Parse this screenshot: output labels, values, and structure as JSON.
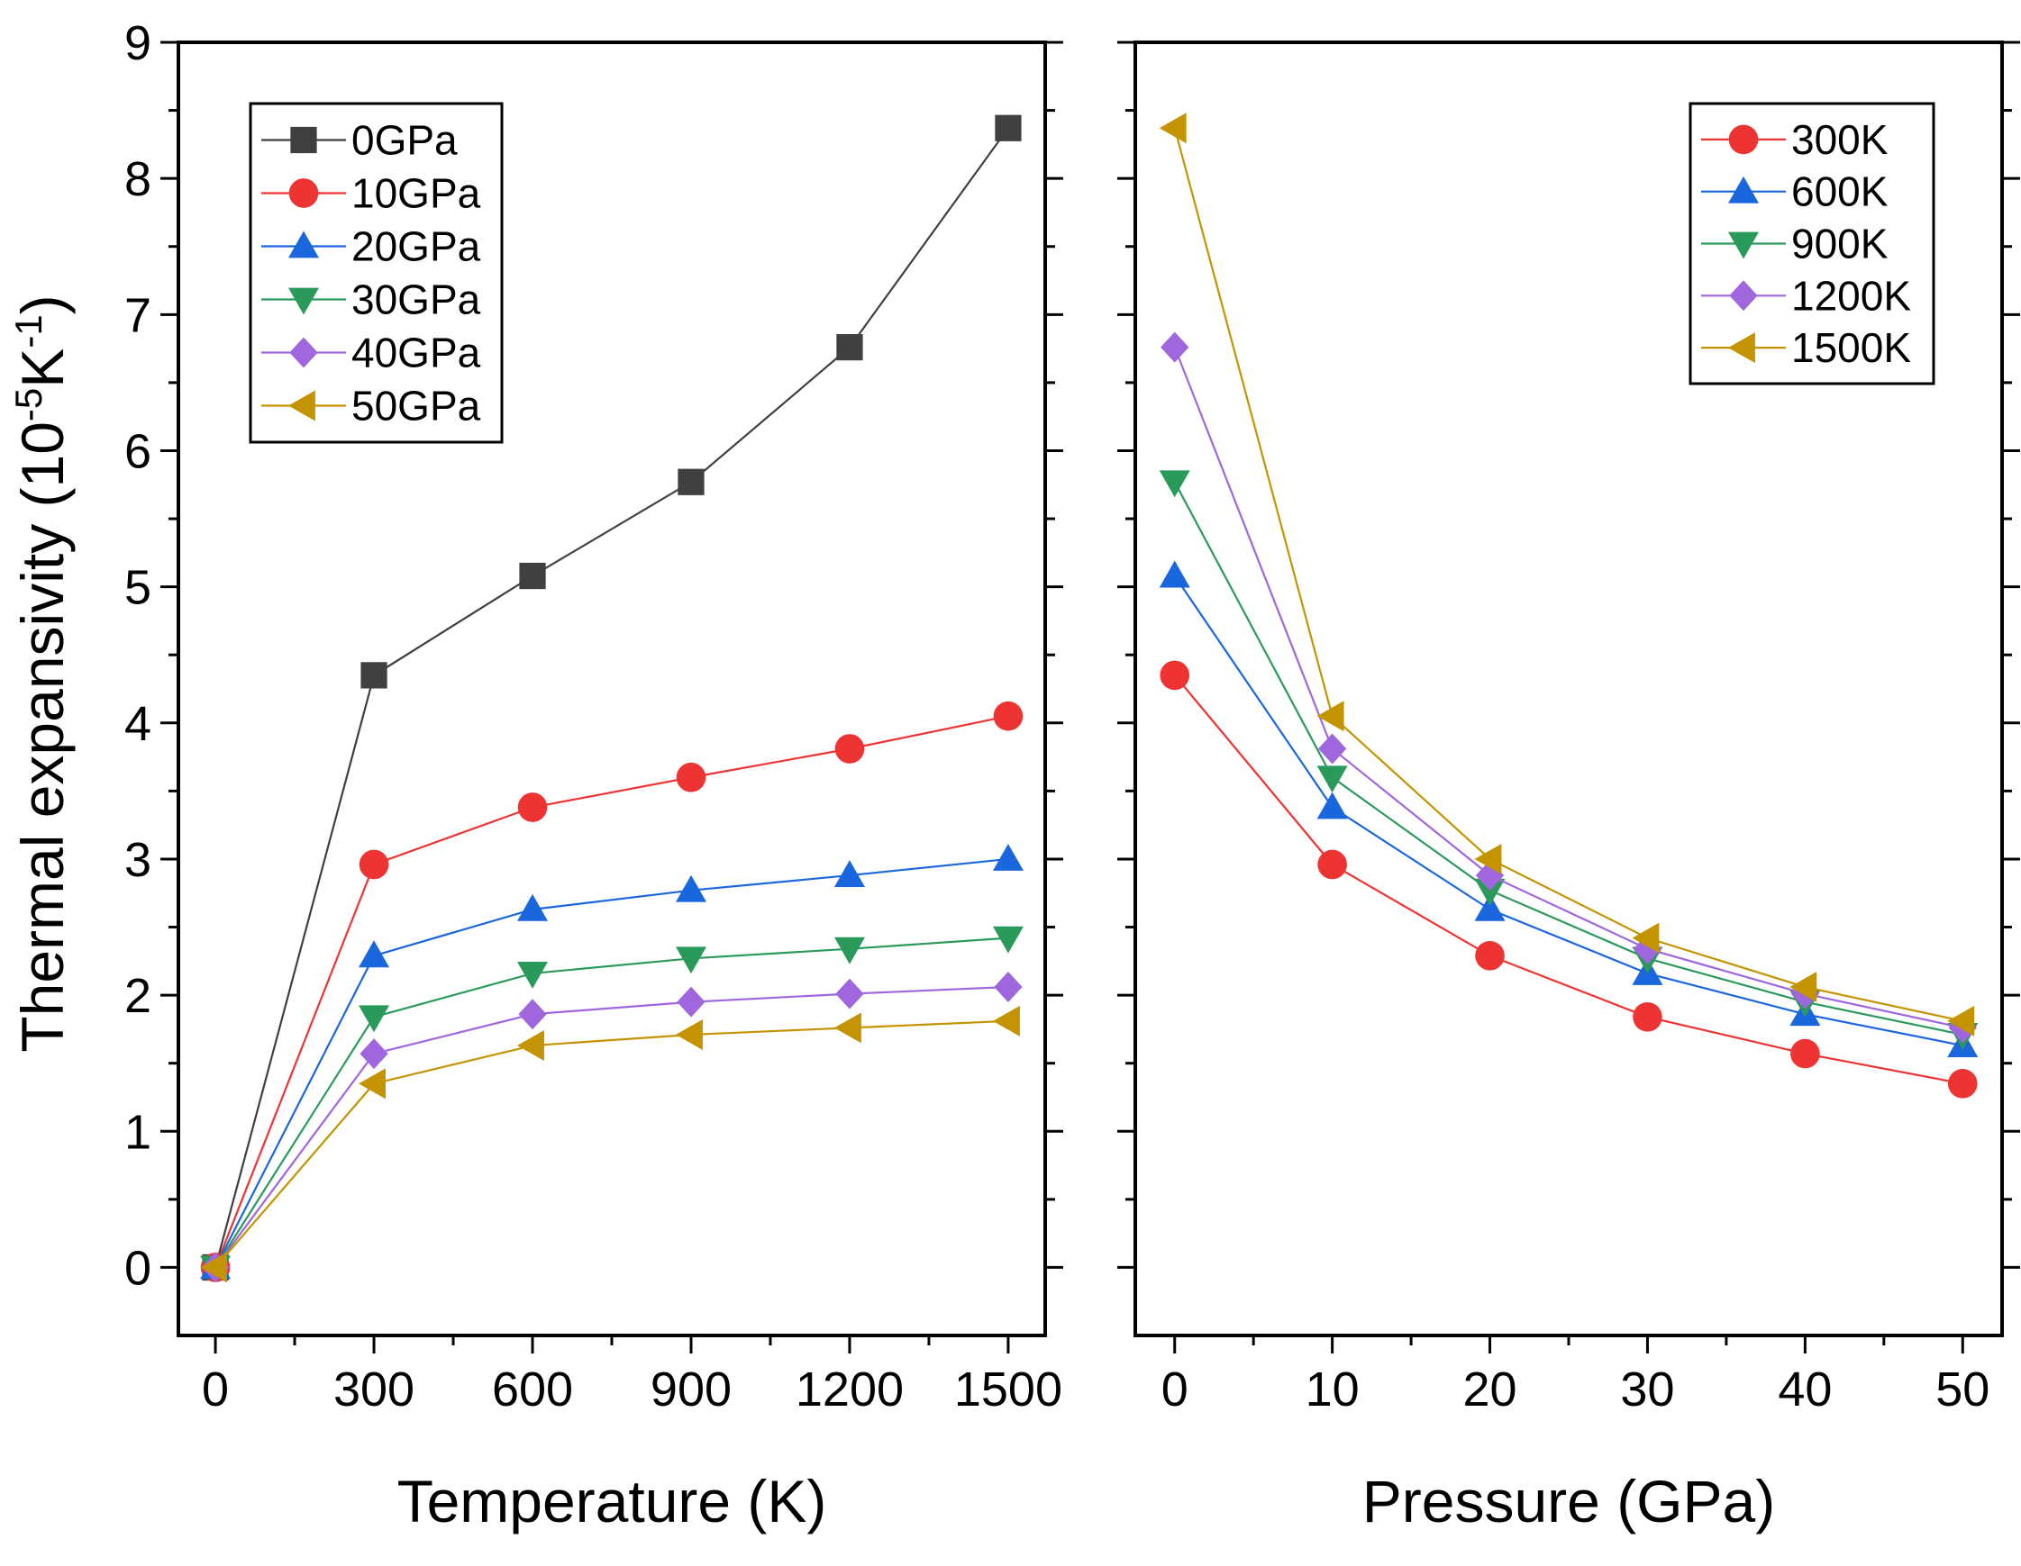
{
  "chart_data": [
    {
      "id": "left",
      "type": "line",
      "xlabel": "Temperature (K)",
      "ylabel": {
        "base": "Thermal expansivity (10",
        "exp1": "-5",
        "mid": "K",
        "exp2": "-1",
        "end": ")"
      },
      "xlim": [
        -70,
        1570
      ],
      "ylim": [
        -0.5,
        9
      ],
      "xticks": [
        0,
        300,
        600,
        900,
        1200,
        1500
      ],
      "xtick_labels": [
        "0",
        "300",
        "600",
        "900",
        "1200",
        "1500"
      ],
      "yticks": [
        0,
        1,
        2,
        3,
        4,
        5,
        6,
        7,
        8,
        9
      ],
      "ytick_labels": [
        "0",
        "1",
        "2",
        "3",
        "4",
        "5",
        "6",
        "7",
        "8",
        "9"
      ],
      "x": [
        0,
        300,
        600,
        900,
        1200,
        1500
      ],
      "legend_position": "top-left",
      "series": [
        {
          "name": "0GPa",
          "color": "#404040",
          "marker": "square",
          "values": [
            0,
            4.35,
            5.08,
            5.77,
            6.76,
            8.37
          ]
        },
        {
          "name": "10GPa",
          "color": "#ee3333",
          "marker": "circle",
          "values": [
            0,
            2.96,
            3.38,
            3.6,
            3.81,
            4.05
          ]
        },
        {
          "name": "20GPa",
          "color": "#1a66dd",
          "marker": "triangle-up",
          "values": [
            0,
            2.29,
            2.63,
            2.77,
            2.88,
            3.0
          ]
        },
        {
          "name": "30GPa",
          "color": "#2a9a5a",
          "marker": "triangle-down",
          "values": [
            0,
            1.84,
            2.16,
            2.27,
            2.34,
            2.42
          ]
        },
        {
          "name": "40GPa",
          "color": "#a066dd",
          "marker": "diamond",
          "values": [
            0,
            1.57,
            1.86,
            1.95,
            2.01,
            2.06
          ]
        },
        {
          "name": "50GPa",
          "color": "#c49400",
          "marker": "triangle-left",
          "values": [
            0,
            1.35,
            1.63,
            1.71,
            1.76,
            1.81
          ]
        }
      ]
    },
    {
      "id": "right",
      "type": "line",
      "xlabel": "Pressure (GPa)",
      "xlim": [
        -2.5,
        52.5
      ],
      "ylim": [
        -0.5,
        9
      ],
      "xticks": [
        0,
        10,
        20,
        30,
        40,
        50
      ],
      "xtick_labels": [
        "0",
        "10",
        "20",
        "30",
        "40",
        "50"
      ],
      "yticks": [
        0,
        1,
        2,
        3,
        4,
        5,
        6,
        7,
        8,
        9
      ],
      "x": [
        0,
        10,
        20,
        30,
        40,
        50
      ],
      "legend_position": "top-right",
      "series": [
        {
          "name": "300K",
          "color": "#ee3333",
          "marker": "circle",
          "values": [
            4.35,
            2.96,
            2.29,
            1.84,
            1.57,
            1.35
          ]
        },
        {
          "name": "600K",
          "color": "#1a66dd",
          "marker": "triangle-up",
          "values": [
            5.08,
            3.38,
            2.63,
            2.16,
            1.86,
            1.63
          ]
        },
        {
          "name": "900K",
          "color": "#2a9a5a",
          "marker": "triangle-down",
          "values": [
            5.77,
            3.6,
            2.77,
            2.27,
            1.95,
            1.71
          ]
        },
        {
          "name": "1200K",
          "color": "#a066dd",
          "marker": "diamond",
          "values": [
            6.76,
            3.81,
            2.88,
            2.34,
            2.01,
            1.76
          ]
        },
        {
          "name": "1500K",
          "color": "#c49400",
          "marker": "triangle-left",
          "values": [
            8.37,
            4.05,
            3.0,
            2.42,
            2.06,
            1.81
          ]
        }
      ]
    }
  ]
}
